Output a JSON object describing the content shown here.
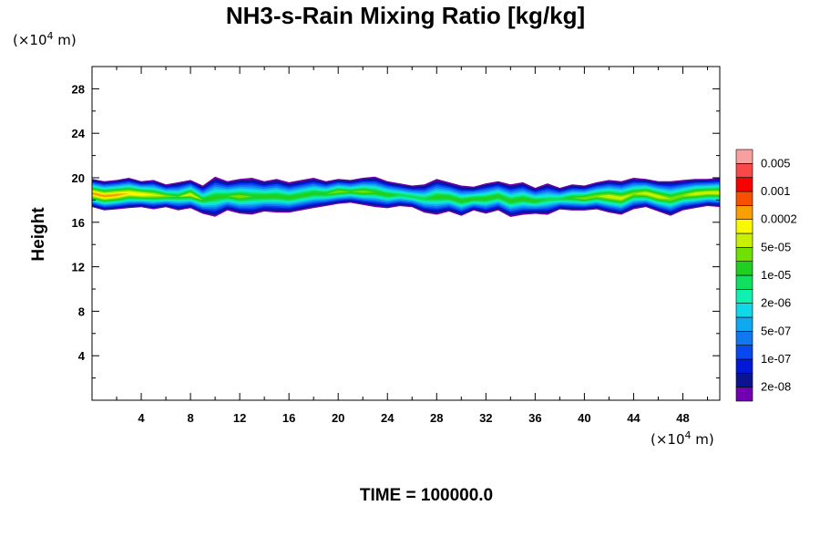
{
  "chart_data": {
    "type": "heatmap",
    "title": "NH3-s-Rain Mixing Ratio [kg/kg]",
    "xlabel": "",
    "ylabel": "Height",
    "x_unit": "(×10",
    "y_unit": "(×10",
    "unit_exp": "4",
    "unit_tail": " m)",
    "xlim": [
      0,
      51
    ],
    "ylim": [
      0,
      30
    ],
    "x_ticks": [
      4,
      8,
      12,
      16,
      20,
      24,
      28,
      32,
      36,
      40,
      44,
      48
    ],
    "x_tick_labels": [
      "4",
      "8",
      "12",
      "16",
      "20",
      "24",
      "28",
      "32",
      "36",
      "40",
      "44",
      "48"
    ],
    "y_ticks": [
      4,
      8,
      12,
      16,
      20,
      24,
      28
    ],
    "y_tick_labels": [
      "4",
      "8",
      "12",
      "16",
      "20",
      "24",
      "28"
    ],
    "colorbar": {
      "colors": [
        "#7000b0",
        "#0a1490",
        "#0018d8",
        "#0848f0",
        "#1078f0",
        "#10a8f0",
        "#10d8e8",
        "#10f0b0",
        "#10e060",
        "#20d020",
        "#70e000",
        "#c8f000",
        "#f8f800",
        "#f8a000",
        "#f85000",
        "#f80000",
        "#f84848",
        "#f8a0a0"
      ],
      "labels": [
        "2e-08",
        "1e-07",
        "5e-07",
        "2e-06",
        "1e-05",
        "5e-05",
        "0.0002",
        "0.001",
        "0.005"
      ]
    },
    "band": {
      "description_only": false,
      "top_height": [
        19.8,
        19.6,
        19.7,
        19.9,
        19.6,
        19.7,
        19.3,
        19.5,
        19.7,
        19.2,
        20.0,
        19.6,
        19.8,
        19.9,
        19.6,
        19.8,
        19.5,
        19.7,
        19.9,
        19.6,
        19.8,
        19.7,
        19.9,
        20.0,
        19.6,
        19.4,
        19.2,
        19.3,
        19.8,
        19.5,
        19.2,
        19.1,
        19.4,
        19.6,
        19.3,
        19.5,
        19.0,
        19.4,
        19.0,
        19.3,
        19.2,
        19.5,
        19.7,
        19.6,
        19.9,
        19.8,
        19.6,
        19.6,
        19.7,
        19.8,
        19.8,
        19.9
      ],
      "bottom_height": [
        17.2,
        16.9,
        17.0,
        17.1,
        17.2,
        17.0,
        17.2,
        16.9,
        17.1,
        16.6,
        16.3,
        16.9,
        16.6,
        16.5,
        16.8,
        16.7,
        16.7,
        16.9,
        17.1,
        17.3,
        17.5,
        17.6,
        17.4,
        17.2,
        17.1,
        17.3,
        17.2,
        16.7,
        16.5,
        16.8,
        16.4,
        16.9,
        16.6,
        16.9,
        16.3,
        16.5,
        16.6,
        16.5,
        17.0,
        16.9,
        16.9,
        17.0,
        16.7,
        16.5,
        17.0,
        17.2,
        16.8,
        16.4,
        16.9,
        17.1,
        17.3,
        17.2
      ],
      "peak_level": [
        13,
        13,
        13,
        12,
        12,
        11,
        10,
        9,
        11,
        9,
        9,
        9,
        10,
        9,
        9,
        9,
        9,
        9,
        9,
        9,
        10,
        9,
        10,
        9,
        9,
        8,
        8,
        8,
        9,
        9,
        9,
        9,
        9,
        9,
        9,
        9,
        9,
        8,
        8,
        9,
        10,
        10,
        11,
        11,
        10,
        11,
        11,
        10,
        10,
        11,
        11,
        11
      ]
    }
  },
  "footer": {
    "time_label": "TIME = 100000.0"
  }
}
